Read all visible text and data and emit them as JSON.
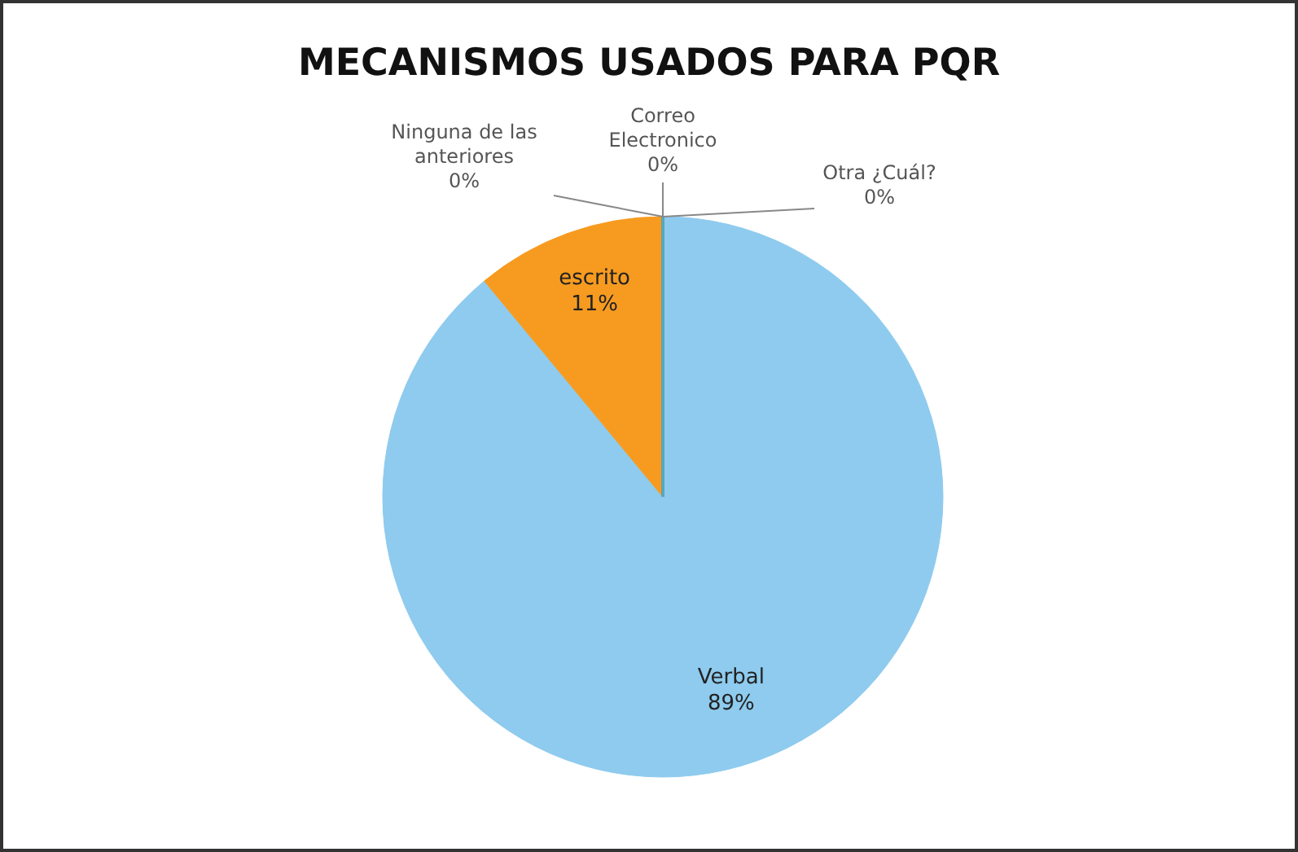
{
  "chart_data": {
    "type": "pie",
    "title": "MECANISMOS USADOS PARA PQR",
    "categories": [
      "Verbal",
      "escrito",
      "Ninguna de las anteriores",
      "Correo Electronico",
      "Otra ¿Cuál?"
    ],
    "values": [
      89,
      11,
      0,
      0,
      0
    ],
    "value_labels": [
      "89%",
      "11%",
      "0%",
      "0%",
      "0%"
    ],
    "colors": [
      "#8ecbee",
      "#f79b20",
      "#9bbb59",
      "#8064a2",
      "#4bacc6"
    ]
  }
}
